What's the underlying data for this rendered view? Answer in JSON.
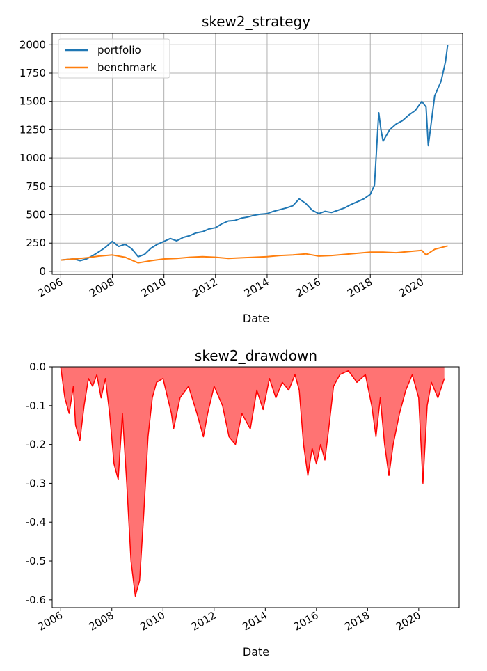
{
  "chart_data": [
    {
      "type": "line",
      "title": "skew2_strategy",
      "xlabel": "Date",
      "ylabel": "",
      "grid": true,
      "legend_position": "top-left",
      "xlim": [
        "2005-09-01",
        "2021-08-01"
      ],
      "ylim": [
        -25,
        2100
      ],
      "x_ticks": [
        "2006",
        "2008",
        "2010",
        "2012",
        "2014",
        "2016",
        "2018",
        "2020"
      ],
      "y_ticks": [
        0,
        250,
        500,
        750,
        1000,
        1250,
        1500,
        1750,
        2000
      ],
      "series": [
        {
          "name": "portfolio",
          "color": "#1f77b4",
          "x": [
            "2006-01-01",
            "2006-04-01",
            "2006-07-01",
            "2006-10-01",
            "2007-01-01",
            "2007-04-01",
            "2007-07-01",
            "2007-10-01",
            "2008-01-01",
            "2008-04-01",
            "2008-07-01",
            "2008-10-01",
            "2009-01-01",
            "2009-04-01",
            "2009-07-01",
            "2009-10-01",
            "2010-01-01",
            "2010-04-01",
            "2010-07-01",
            "2010-10-01",
            "2011-01-01",
            "2011-04-01",
            "2011-07-01",
            "2011-10-01",
            "2012-01-01",
            "2012-04-01",
            "2012-07-01",
            "2012-10-01",
            "2013-01-01",
            "2013-04-01",
            "2013-07-01",
            "2013-10-01",
            "2014-01-01",
            "2014-04-01",
            "2014-07-01",
            "2014-10-01",
            "2015-01-01",
            "2015-04-01",
            "2015-07-01",
            "2015-10-01",
            "2016-01-01",
            "2016-04-01",
            "2016-07-01",
            "2016-10-01",
            "2017-01-01",
            "2017-04-01",
            "2017-07-01",
            "2017-10-01",
            "2018-01-01",
            "2018-03-01",
            "2018-05-01",
            "2018-06-01",
            "2018-07-01",
            "2018-10-01",
            "2019-01-01",
            "2019-04-01",
            "2019-07-01",
            "2019-10-01",
            "2020-01-01",
            "2020-03-01",
            "2020-04-01",
            "2020-07-01",
            "2020-10-01",
            "2020-12-01",
            "2021-01-01"
          ],
          "values": [
            100,
            105,
            110,
            95,
            110,
            140,
            175,
            215,
            265,
            220,
            240,
            200,
            130,
            150,
            205,
            240,
            265,
            290,
            270,
            300,
            315,
            340,
            350,
            375,
            385,
            420,
            445,
            450,
            470,
            480,
            495,
            505,
            510,
            530,
            545,
            560,
            580,
            640,
            600,
            540,
            510,
            530,
            520,
            540,
            560,
            590,
            615,
            640,
            680,
            760,
            1400,
            1250,
            1150,
            1250,
            1300,
            1330,
            1380,
            1420,
            1500,
            1450,
            1110,
            1550,
            1680,
            1850,
            2000
          ]
        },
        {
          "name": "benchmark",
          "color": "#ff7f0e",
          "x": [
            "2006-01-01",
            "2006-07-01",
            "2007-01-01",
            "2007-07-01",
            "2008-01-01",
            "2008-07-01",
            "2009-01-01",
            "2009-07-01",
            "2010-01-01",
            "2010-07-01",
            "2011-01-01",
            "2011-07-01",
            "2012-01-01",
            "2012-07-01",
            "2013-01-01",
            "2013-07-01",
            "2014-01-01",
            "2014-07-01",
            "2015-01-01",
            "2015-07-01",
            "2016-01-01",
            "2016-07-01",
            "2017-01-01",
            "2017-07-01",
            "2018-01-01",
            "2018-07-01",
            "2019-01-01",
            "2019-07-01",
            "2020-01-01",
            "2020-03-01",
            "2020-07-01",
            "2021-01-01"
          ],
          "values": [
            100,
            110,
            120,
            135,
            145,
            125,
            75,
            95,
            110,
            115,
            125,
            130,
            125,
            115,
            120,
            125,
            130,
            140,
            145,
            155,
            135,
            140,
            150,
            160,
            170,
            170,
            165,
            175,
            185,
            145,
            195,
            225
          ]
        }
      ]
    },
    {
      "type": "area",
      "title": "skew2_drawdown",
      "xlabel": "Date",
      "ylabel": "",
      "grid": false,
      "xlim": [
        "2005-09-01",
        "2021-08-01"
      ],
      "ylim": [
        -0.62,
        0.0
      ],
      "x_ticks": [
        "2006",
        "2008",
        "2010",
        "2012",
        "2014",
        "2016",
        "2018",
        "2020"
      ],
      "y_ticks": [
        0.0,
        -0.1,
        -0.2,
        -0.3,
        -0.4,
        -0.5,
        -0.6
      ],
      "series": [
        {
          "color": "#ff0000",
          "x": [
            "2006-01-01",
            "2006-03-01",
            "2006-05-01",
            "2006-07-01",
            "2006-08-01",
            "2006-10-01",
            "2006-12-01",
            "2007-02-01",
            "2007-04-01",
            "2007-06-01",
            "2007-08-01",
            "2007-10-01",
            "2007-12-01",
            "2008-02-01",
            "2008-04-01",
            "2008-06-01",
            "2008-08-01",
            "2008-10-01",
            "2008-12-01",
            "2009-02-01",
            "2009-04-01",
            "2009-06-01",
            "2009-08-01",
            "2009-10-01",
            "2010-01-01",
            "2010-05-01",
            "2010-06-01",
            "2010-09-01",
            "2011-01-01",
            "2011-05-01",
            "2011-08-01",
            "2011-10-01",
            "2012-01-01",
            "2012-05-01",
            "2012-08-01",
            "2012-11-01",
            "2013-02-01",
            "2013-06-01",
            "2013-09-01",
            "2013-12-01",
            "2014-03-01",
            "2014-06-01",
            "2014-09-01",
            "2014-12-01",
            "2015-03-01",
            "2015-05-01",
            "2015-07-01",
            "2015-09-01",
            "2015-11-01",
            "2016-01-01",
            "2016-03-01",
            "2016-05-01",
            "2016-07-01",
            "2016-09-01",
            "2016-12-01",
            "2017-04-01",
            "2017-08-01",
            "2017-12-01",
            "2018-03-01",
            "2018-05-01",
            "2018-07-01",
            "2018-09-01",
            "2018-11-01",
            "2019-01-01",
            "2019-04-01",
            "2019-07-01",
            "2019-10-01",
            "2020-01-01",
            "2020-03-01",
            "2020-05-01",
            "2020-07-01",
            "2020-10-01",
            "2021-01-01"
          ],
          "values": [
            0,
            -0.08,
            -0.12,
            -0.05,
            -0.15,
            -0.19,
            -0.1,
            -0.03,
            -0.05,
            -0.02,
            -0.08,
            -0.03,
            -0.12,
            -0.25,
            -0.29,
            -0.12,
            -0.3,
            -0.5,
            -0.59,
            -0.55,
            -0.38,
            -0.18,
            -0.08,
            -0.04,
            -0.03,
            -0.12,
            -0.16,
            -0.08,
            -0.05,
            -0.12,
            -0.18,
            -0.12,
            -0.05,
            -0.1,
            -0.18,
            -0.2,
            -0.12,
            -0.16,
            -0.06,
            -0.11,
            -0.03,
            -0.08,
            -0.04,
            -0.06,
            -0.02,
            -0.06,
            -0.2,
            -0.28,
            -0.21,
            -0.25,
            -0.2,
            -0.24,
            -0.15,
            -0.05,
            -0.02,
            -0.01,
            -0.04,
            -0.02,
            -0.1,
            -0.18,
            -0.08,
            -0.2,
            -0.28,
            -0.2,
            -0.12,
            -0.06,
            -0.02,
            -0.08,
            -0.3,
            -0.1,
            -0.04,
            -0.08,
            -0.03
          ]
        }
      ]
    }
  ]
}
